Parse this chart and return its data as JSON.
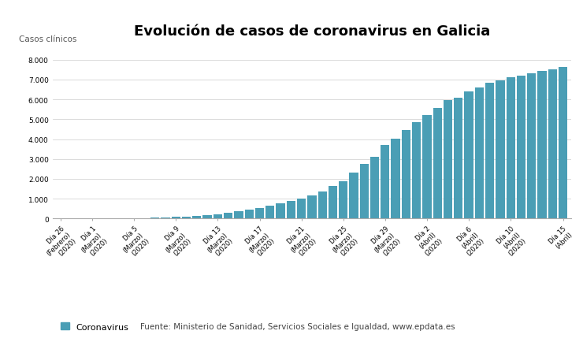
{
  "title": "Evolución de casos de coronavirus en Galicia",
  "ylabel": "Casos clínicos",
  "bar_color": "#4a9eb5",
  "background_color": "#ffffff",
  "grid_color": "#cccccc",
  "values": [
    2,
    3,
    4,
    6,
    9,
    13,
    18,
    25,
    35,
    45,
    60,
    80,
    100,
    130,
    175,
    228,
    295,
    370,
    450,
    540,
    640,
    750,
    870,
    1000,
    1175,
    1360,
    1650,
    1900,
    2300,
    2750,
    3100,
    3700,
    4020,
    4450,
    4870,
    5200,
    5570,
    5950,
    6100,
    6400,
    6600,
    6820,
    6950,
    7100,
    7200,
    7300,
    7430,
    7530,
    7650
  ],
  "tick_positions": [
    0,
    3,
    7,
    11,
    15,
    19,
    23,
    27,
    31,
    35,
    39,
    43,
    48
  ],
  "tick_labels": [
    "Día 26\n(Febrero)\n(2020)",
    "Día 1\n(Marzo)\n(2020)",
    "Día 5\n(Marzo)\n(2020)",
    "Día 9\n(Marzo)\n(2020)",
    "Día 13\n(Marzo)\n(2020)",
    "Día 17\n(Marzo)\n(2020)",
    "Día 21\n(Marzo)\n(2020)",
    "Día 25\n(Marzo)\n(2020)",
    "Día 29\n(Marzo)\n(2020)",
    "Día 2\n(Abril)\n(2020)",
    "Día 6\n(Abril)\n(2020)",
    "Día 10\n(Abril)\n(2020)",
    "Día 15\n(Abril)"
  ],
  "ylim": [
    0,
    8800
  ],
  "yticks": [
    0,
    1000,
    2000,
    3000,
    4000,
    5000,
    6000,
    7000,
    8000
  ],
  "ytick_labels": [
    "0",
    "1.000",
    "2.000",
    "3.000",
    "4.000",
    "5.000",
    "6.000",
    "7.000",
    "8.000"
  ],
  "legend_label": "Coronavirus",
  "source_text": "Fuente: Ministerio de Sanidad, Servicios Sociales e Igualdad, www.epdata.es",
  "title_fontsize": 13,
  "tick_fontsize": 6,
  "ylabel_fontsize": 7.5,
  "legend_fontsize": 8,
  "source_fontsize": 7.5
}
